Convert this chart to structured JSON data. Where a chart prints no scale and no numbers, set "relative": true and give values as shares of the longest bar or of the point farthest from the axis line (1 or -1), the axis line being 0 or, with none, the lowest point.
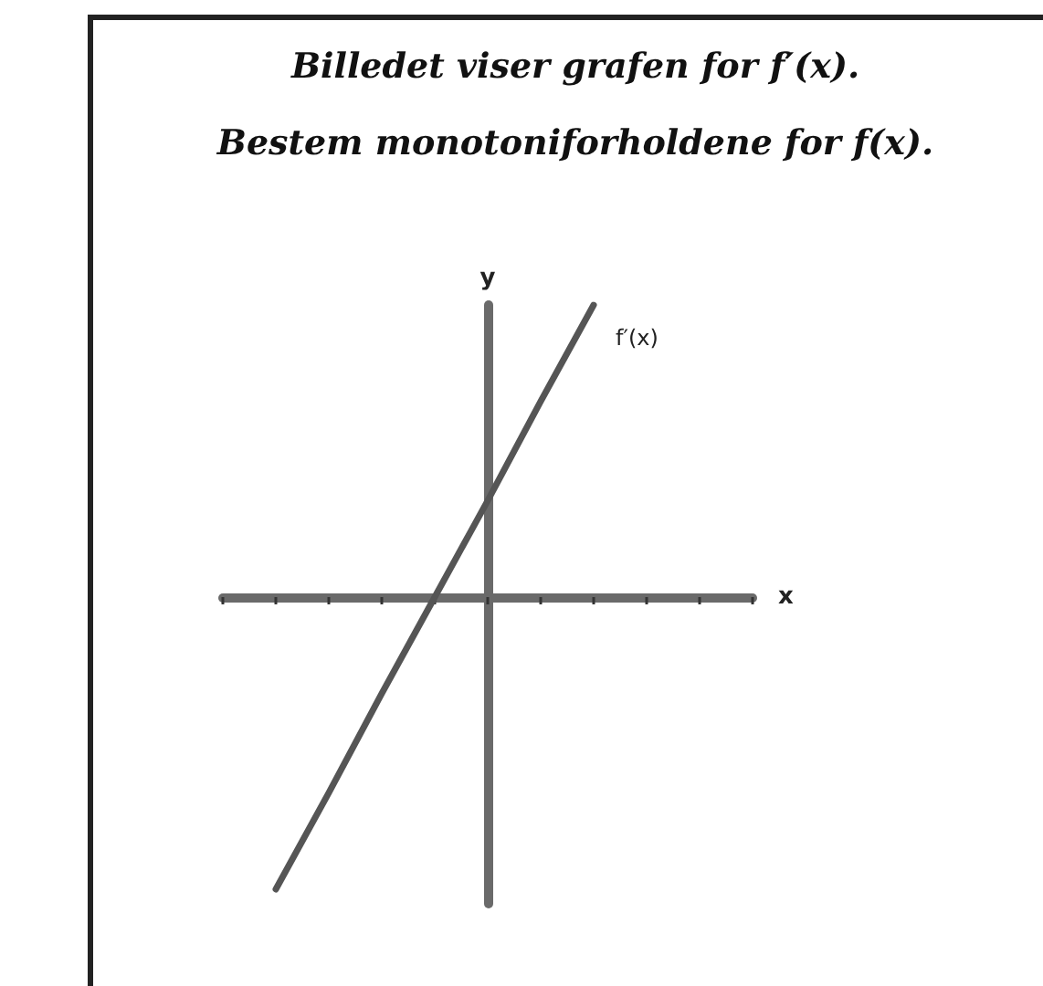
{
  "chart_data": {
    "type": "line",
    "title": "Billedet viser grafen for f′(x).",
    "subtitle": "Bestem monotoniforholdene for f(x).",
    "xlabel": "x",
    "ylabel": "y",
    "relative": true,
    "categories": [
      null,
      null,
      null,
      null,
      null,
      null,
      null,
      null,
      null,
      null,
      null
    ],
    "series": [
      {
        "name": "f′(x)",
        "color": "#555555",
        "values": [
          null,
          -1,
          -0.67,
          -0.33,
          0,
          0.33,
          0.67,
          1,
          null,
          null,
          null
        ]
      }
    ],
    "grid": false,
    "legend": false,
    "line_style": "solid"
  }
}
